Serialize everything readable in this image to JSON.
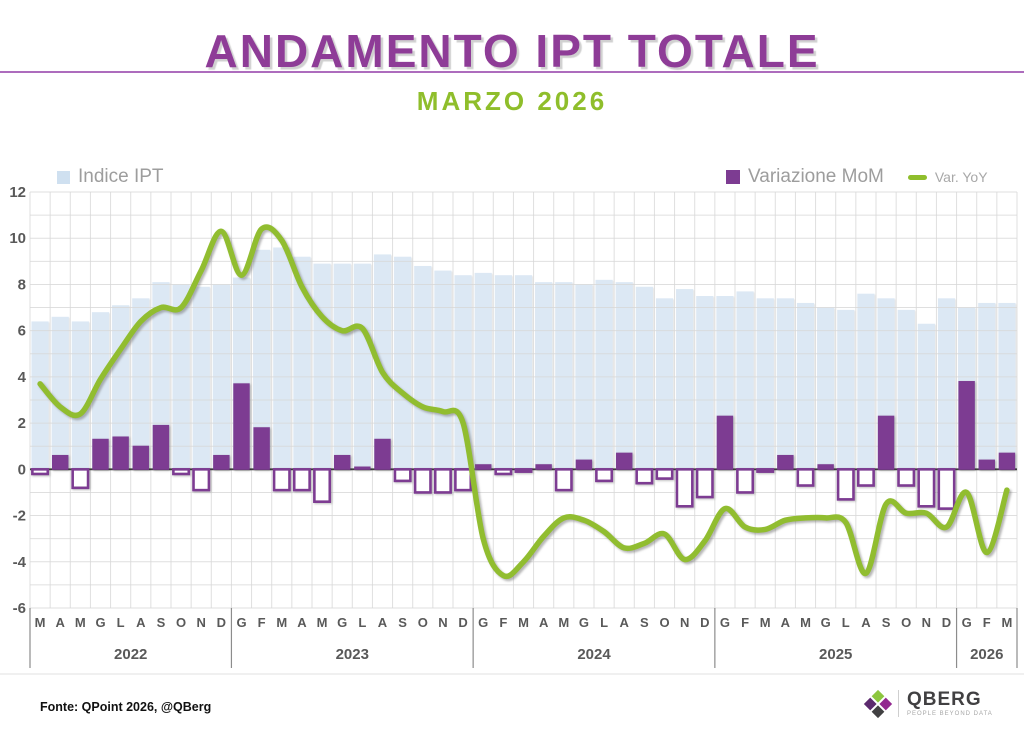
{
  "header": {
    "title": "ANDAMENTO IPT TOTALE",
    "subtitle": "MARZO 2026"
  },
  "legend": {
    "ipt": "Indice IPT",
    "mom": "Variazione MoM",
    "yoy": "Var. YoY"
  },
  "footer": {
    "source": "Fonte: QPoint 2026, @QBerg"
  },
  "logo": {
    "name": "QBERG",
    "tagline": "PEOPLE BEYOND DATA"
  },
  "colors": {
    "title_purple": "#8e3c97",
    "subtitle_green": "#8fbe2b",
    "ipt_fill": "#dce8f4",
    "mom_purple": "#7d3c92",
    "yoy_green": "#91bd30",
    "axis_text": "#595959",
    "grid": "#d8d8d8",
    "zero_line": "#404040",
    "year_divider": "#8c8c8c",
    "title_rule": "#ad6cbd"
  },
  "chart_data": {
    "type": "combo",
    "title": "ANDAMENTO IPT TOTALE",
    "subtitle": "MARZO 2026",
    "ylim": [
      -6,
      12
    ],
    "ytick_step": 2,
    "yticks": [
      12,
      10,
      8,
      6,
      4,
      2,
      0,
      -2,
      -4,
      -6
    ],
    "grid": "on",
    "legend_position": "top",
    "years": [
      {
        "label": "2022",
        "months": [
          "M",
          "A",
          "M",
          "G",
          "L",
          "A",
          "S",
          "O",
          "N",
          "D"
        ]
      },
      {
        "label": "2023",
        "months": [
          "G",
          "F",
          "M",
          "A",
          "M",
          "G",
          "L",
          "A",
          "S",
          "O",
          "N",
          "D"
        ]
      },
      {
        "label": "2024",
        "months": [
          "G",
          "F",
          "M",
          "A",
          "M",
          "G",
          "L",
          "A",
          "S",
          "O",
          "N",
          "D"
        ]
      },
      {
        "label": "2025",
        "months": [
          "G",
          "F",
          "M",
          "A",
          "M",
          "G",
          "L",
          "A",
          "S",
          "O",
          "N",
          "D"
        ]
      },
      {
        "label": "2026",
        "months": [
          "G",
          "F",
          "M"
        ]
      }
    ],
    "series": [
      {
        "name": "Indice IPT",
        "type": "bar",
        "values": [
          6.4,
          6.6,
          6.4,
          6.8,
          7.1,
          7.4,
          8.1,
          8.0,
          7.9,
          8.0,
          8.3,
          9.5,
          9.6,
          9.2,
          8.9,
          8.9,
          8.9,
          9.3,
          9.2,
          8.8,
          8.6,
          8.4,
          8.5,
          8.4,
          8.4,
          8.1,
          8.1,
          8.0,
          8.2,
          8.1,
          7.9,
          7.4,
          7.8,
          7.5,
          7.5,
          7.7,
          7.4,
          7.4,
          7.2,
          7.0,
          6.9,
          7.6,
          7.4,
          6.9,
          6.3,
          7.4,
          7.0,
          7.2,
          7.2
        ]
      },
      {
        "name": "Variazione MoM",
        "type": "bar",
        "values": [
          -0.2,
          0.6,
          -0.8,
          1.3,
          1.4,
          1.0,
          1.9,
          -0.2,
          -0.9,
          0.6,
          3.7,
          1.8,
          -0.9,
          -0.9,
          -1.4,
          0.6,
          0.1,
          1.3,
          -0.5,
          -1.0,
          -1.0,
          -0.9,
          0.2,
          -0.2,
          -0.1,
          0.2,
          -0.9,
          0.4,
          -0.5,
          0.7,
          -0.6,
          -0.4,
          -1.6,
          -1.2,
          2.3,
          -1.0,
          -0.1,
          0.6,
          -0.7,
          0.2,
          -1.3,
          -0.7,
          2.3,
          -0.7,
          -1.6,
          -1.7,
          3.8,
          0.4,
          0.7
        ]
      },
      {
        "name": "Var. YoY",
        "type": "line",
        "values": [
          3.7,
          2.7,
          2.4,
          3.9,
          5.2,
          6.4,
          7.0,
          7.0,
          8.6,
          10.3,
          8.4,
          10.4,
          9.9,
          7.9,
          6.6,
          6.0,
          6.1,
          4.2,
          3.3,
          2.7,
          2.5,
          2.0,
          -3.0,
          -4.6,
          -4.0,
          -2.9,
          -2.1,
          -2.2,
          -2.7,
          -3.4,
          -3.2,
          -2.8,
          -3.9,
          -3.1,
          -1.7,
          -2.5,
          -2.6,
          -2.2,
          -2.1,
          -2.1,
          -2.3,
          -4.5,
          -1.5,
          -1.9,
          -1.9,
          -2.5,
          -1.0,
          -3.6,
          -0.9
        ]
      }
    ]
  }
}
